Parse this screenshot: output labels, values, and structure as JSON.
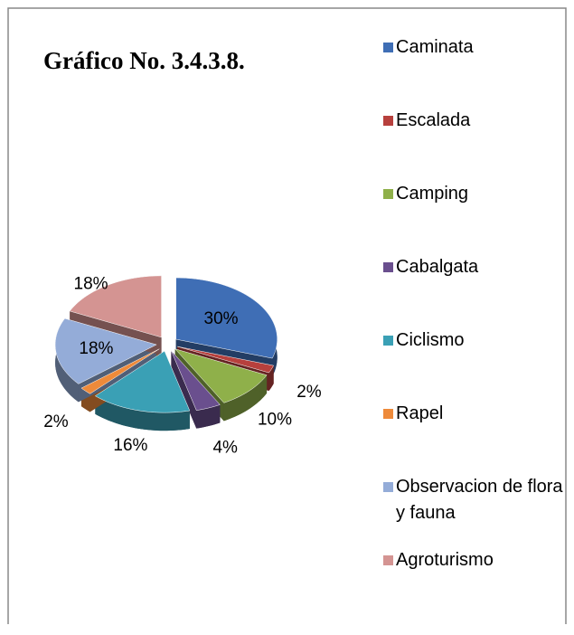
{
  "chart_data": {
    "type": "pie3d",
    "title": "Gráfico No. 3.4.3.8.",
    "categories": [
      "Caminata",
      "Escalada",
      "Camping",
      "Cabalgata",
      "Ciclismo",
      "Rapel",
      "Observacion de flora y fauna",
      "Agroturismo"
    ],
    "values": [
      30,
      2,
      10,
      4,
      16,
      2,
      18,
      18
    ],
    "value_labels": [
      "30%",
      "2%",
      "10%",
      "4%",
      "16%",
      "2%",
      "18%",
      "18%"
    ],
    "colors": [
      "#3f6eb5",
      "#b7403d",
      "#8fb04a",
      "#6a4f8e",
      "#3aa0b5",
      "#ee8a3a",
      "#94acd8",
      "#d49492"
    ],
    "legend": "right"
  }
}
